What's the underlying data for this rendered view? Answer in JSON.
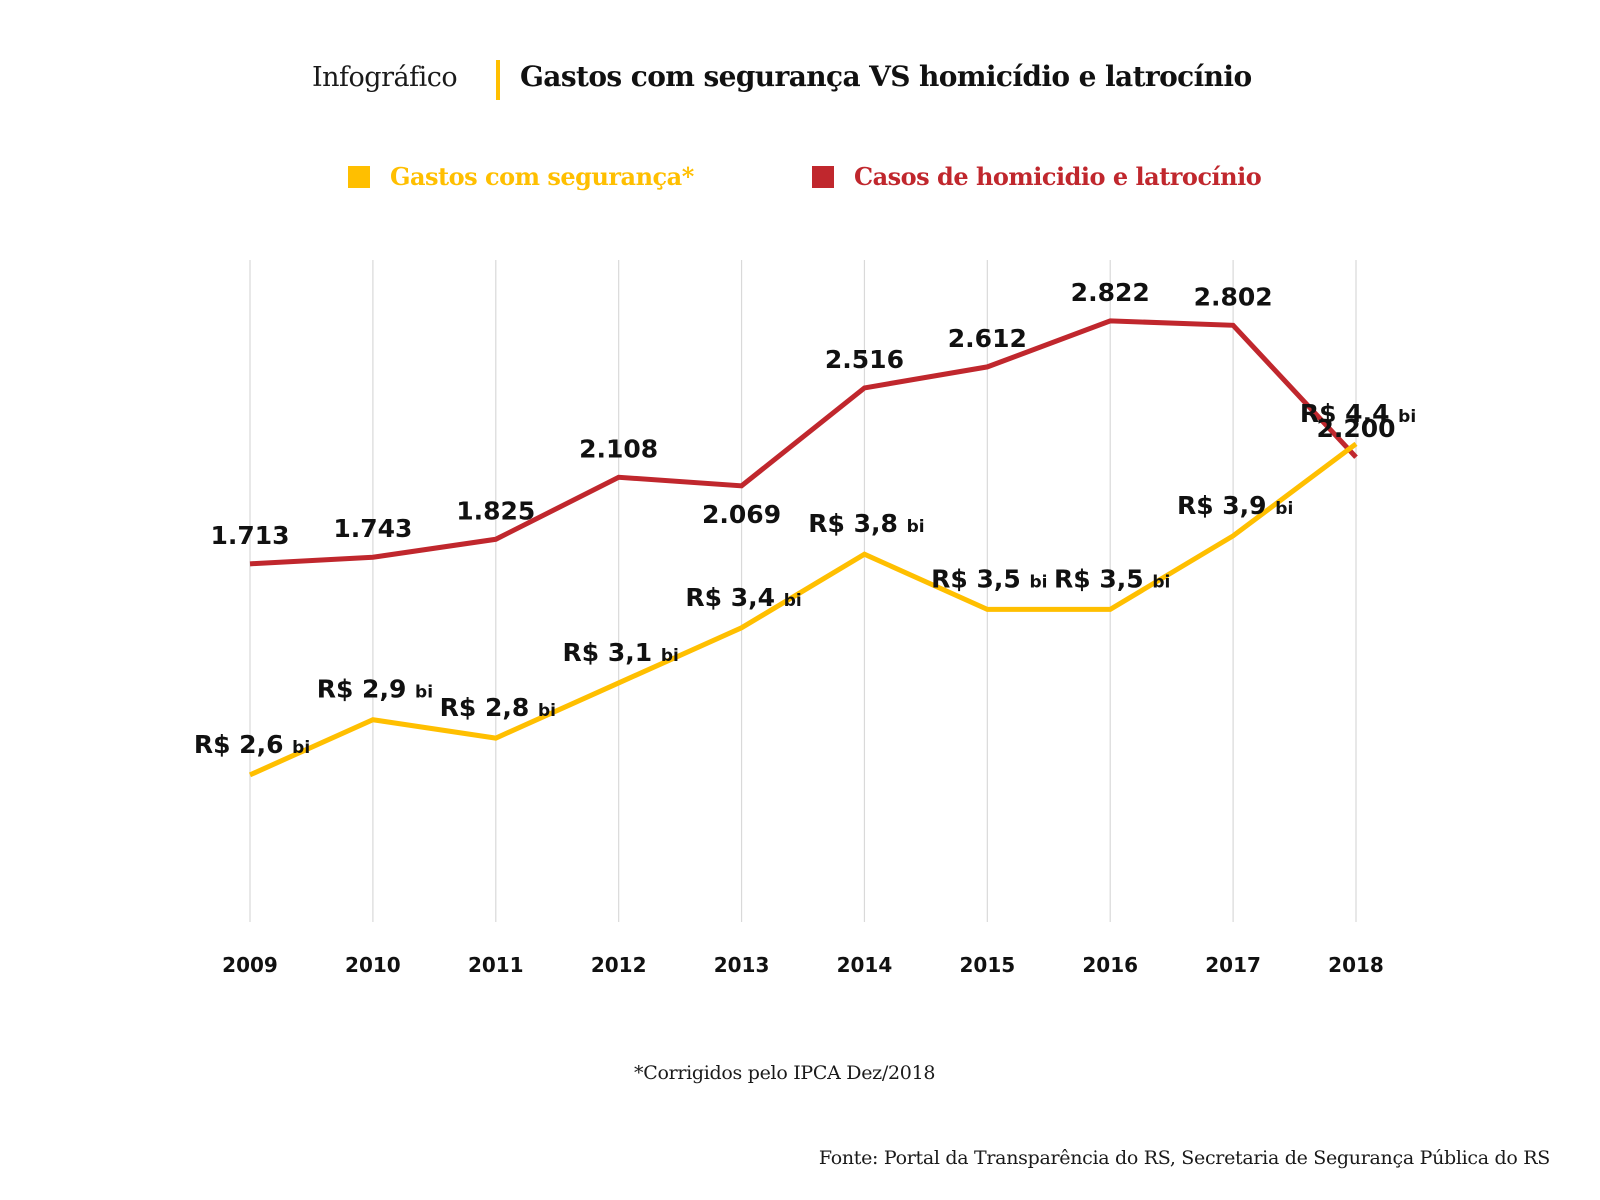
{
  "header": {
    "prefix": "Infográfico",
    "title": "Gastos com segurança VS homicídio e latrocínio"
  },
  "legend": [
    {
      "label": "Gastos com segurança*",
      "color": "#FFBF00"
    },
    {
      "label": "Casos de homicidio e latrocínio",
      "color": "#C0272D"
    }
  ],
  "footnote": "*Corrigidos pelo IPCA Dez/2018",
  "source": "Fonte: Portal da Transparência do RS, Secretaria de Segurança Pública do RS",
  "chart_data": {
    "type": "line",
    "title": "Gastos com segurança VS homicídio e latrocínio",
    "xlabel": "",
    "ylabel": "",
    "grid": "vertical",
    "legend_position": "top-center",
    "categories": [
      "2009",
      "2010",
      "2011",
      "2012",
      "2013",
      "2014",
      "2015",
      "2016",
      "2017",
      "2018"
    ],
    "series": [
      {
        "name": "Casos de homicidio e latrocínio",
        "color": "#C0272D",
        "axis": "independent",
        "ylim": [
          1000,
          3100
        ],
        "values": [
          1713,
          1743,
          1825,
          2108,
          2069,
          2516,
          2612,
          2822,
          2802,
          2200
        ],
        "labels": [
          "1.713",
          "1.743",
          "1.825",
          "2.108",
          "2.069",
          "2.516",
          "2.612",
          "2.822",
          "2.802",
          "2.200"
        ],
        "label_position": [
          "above",
          "above",
          "above",
          "above",
          "below",
          "above",
          "above",
          "above",
          "above",
          "above"
        ]
      },
      {
        "name": "Gastos com segurança*",
        "unit": "R$ bi",
        "color": "#FFBF00",
        "axis": "independent",
        "ylim": [
          1.8,
          5.4
        ],
        "values": [
          2.6,
          2.9,
          2.8,
          3.1,
          3.4,
          3.8,
          3.5,
          3.5,
          3.9,
          4.4
        ],
        "labels": [
          "R$ 2,6",
          "R$ 2,9",
          "R$ 2,8",
          "R$ 3,1",
          "R$ 3,4",
          "R$ 3,8",
          "R$ 3,5",
          "R$ 3,5",
          "R$ 3,9",
          "R$ 4,4"
        ],
        "label_suffix": "bi"
      }
    ]
  }
}
